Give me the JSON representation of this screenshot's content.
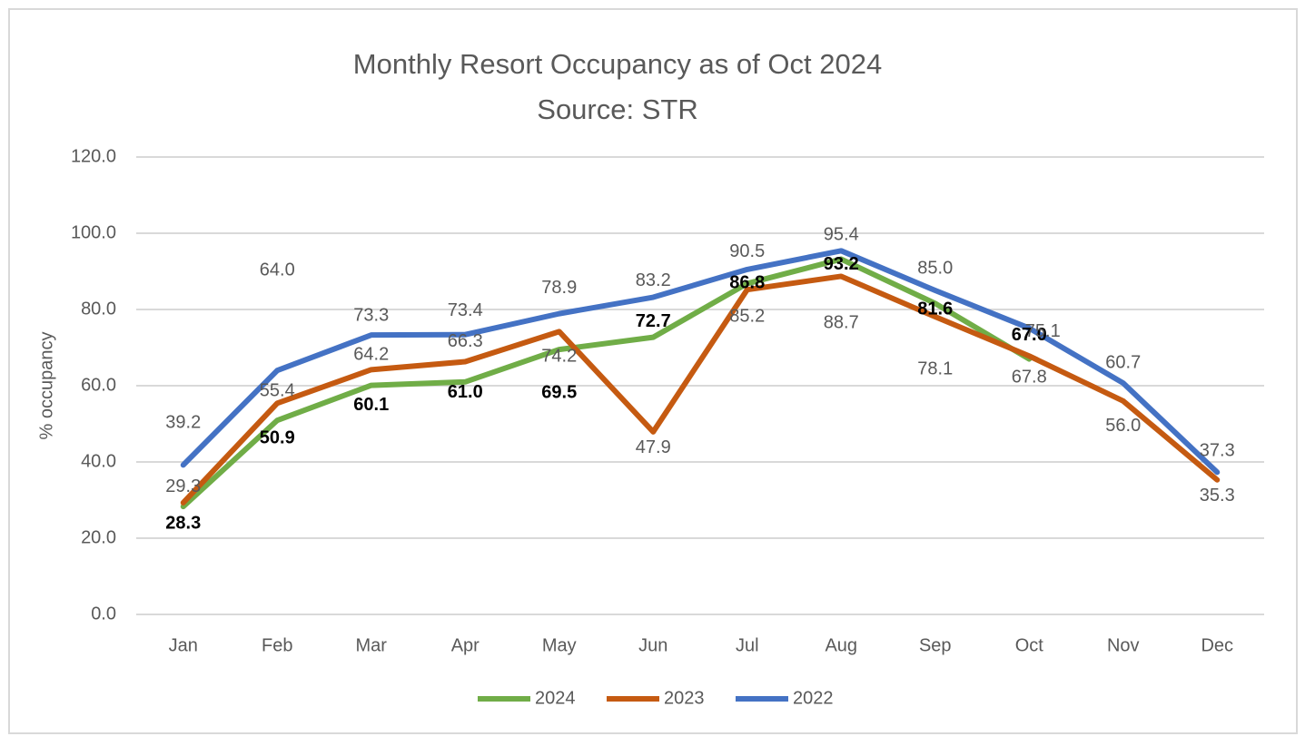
{
  "chart_data": {
    "type": "line",
    "title": "Monthly Resort Occupancy as of Oct 2024",
    "subtitle": "Source: STR",
    "y_label": "% occupancy",
    "categories": [
      "Jan",
      "Feb",
      "Mar",
      "Apr",
      "May",
      "Jun",
      "Jul",
      "Aug",
      "Sep",
      "Oct",
      "Nov",
      "Dec"
    ],
    "series": [
      {
        "name": "2024",
        "color": "#70ad47",
        "values": [
          28.3,
          50.9,
          60.1,
          61.0,
          69.5,
          72.7,
          86.8,
          93.2,
          81.6,
          67.0,
          null,
          null
        ],
        "value_labels": [
          "28.3",
          "50.9",
          "60.1",
          "61.0",
          "69.5",
          "72.7",
          "86.8",
          "93.2",
          "81.6",
          "67.0",
          null,
          null
        ]
      },
      {
        "name": "2023",
        "color": "#c55a11",
        "values": [
          29.3,
          55.4,
          64.2,
          66.3,
          74.2,
          47.9,
          85.2,
          88.7,
          78.1,
          67.8,
          56.0,
          35.3
        ],
        "value_labels": [
          "29.3",
          "55.4",
          "64.2",
          "66.3",
          "74.2",
          "47.9",
          "85.2",
          "88.7",
          "78.1",
          "67.8",
          "56.0",
          "35.3"
        ]
      },
      {
        "name": "2022",
        "color": "#4472c4",
        "values": [
          39.2,
          64.0,
          73.3,
          73.4,
          78.9,
          83.2,
          90.5,
          95.4,
          85.0,
          75.1,
          60.7,
          37.3
        ],
        "value_labels": [
          "39.2",
          "64.0",
          "73.3",
          "73.4",
          "78.9",
          "83.2",
          "90.5",
          "95.4",
          "85.0",
          "75.1",
          "60.7",
          "37.3"
        ]
      }
    ],
    "ylim": [
      0,
      120
    ],
    "yticks": [
      {
        "value": 0,
        "label": "0.0"
      },
      {
        "value": 20,
        "label": "20.0"
      },
      {
        "value": 40,
        "label": "40.0"
      },
      {
        "value": 60,
        "label": "60.0"
      },
      {
        "value": 80,
        "label": "80.0"
      },
      {
        "value": 100,
        "label": "100.0"
      },
      {
        "value": 120,
        "label": "120.0"
      }
    ],
    "grid": true,
    "legend": "bottom"
  }
}
